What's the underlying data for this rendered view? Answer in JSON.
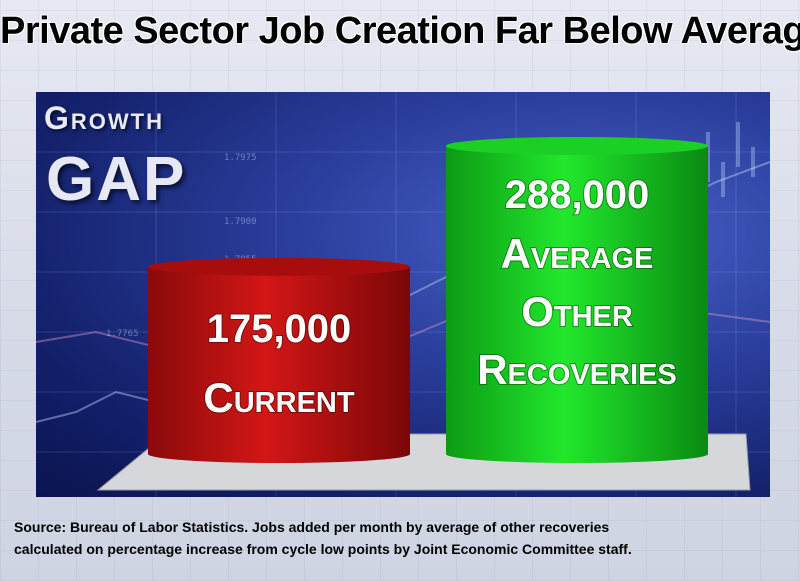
{
  "header": {
    "title": "Private Sector Job Creation Far Below Average"
  },
  "panel": {
    "growth_label": "Growth",
    "gap_label": "GAP",
    "ticker_labels": [
      "1.7975",
      "1.7900",
      "1.7855",
      "1.7765"
    ]
  },
  "chart_data": {
    "type": "bar",
    "categories": [
      "Current",
      "Average Other Recoveries"
    ],
    "values": [
      175000,
      288000
    ],
    "value_labels": [
      "175,000",
      "288,000"
    ],
    "category_label_lines": [
      [
        "Current"
      ],
      [
        "Average",
        "Other",
        "Recoveries"
      ]
    ],
    "bar_colors": [
      "#c41212",
      "#16d11f"
    ],
    "title": "",
    "xlabel": "",
    "ylabel": "",
    "ylim": [
      0,
      288000
    ],
    "grid": false,
    "legend": "none"
  },
  "footer": {
    "source_line1": "Source:  Bureau of Labor Statistics.  Jobs added per month by average of other recoveries",
    "source_line2": "calculated on percentage increase from cycle low points by Joint Economic Committee staff."
  }
}
